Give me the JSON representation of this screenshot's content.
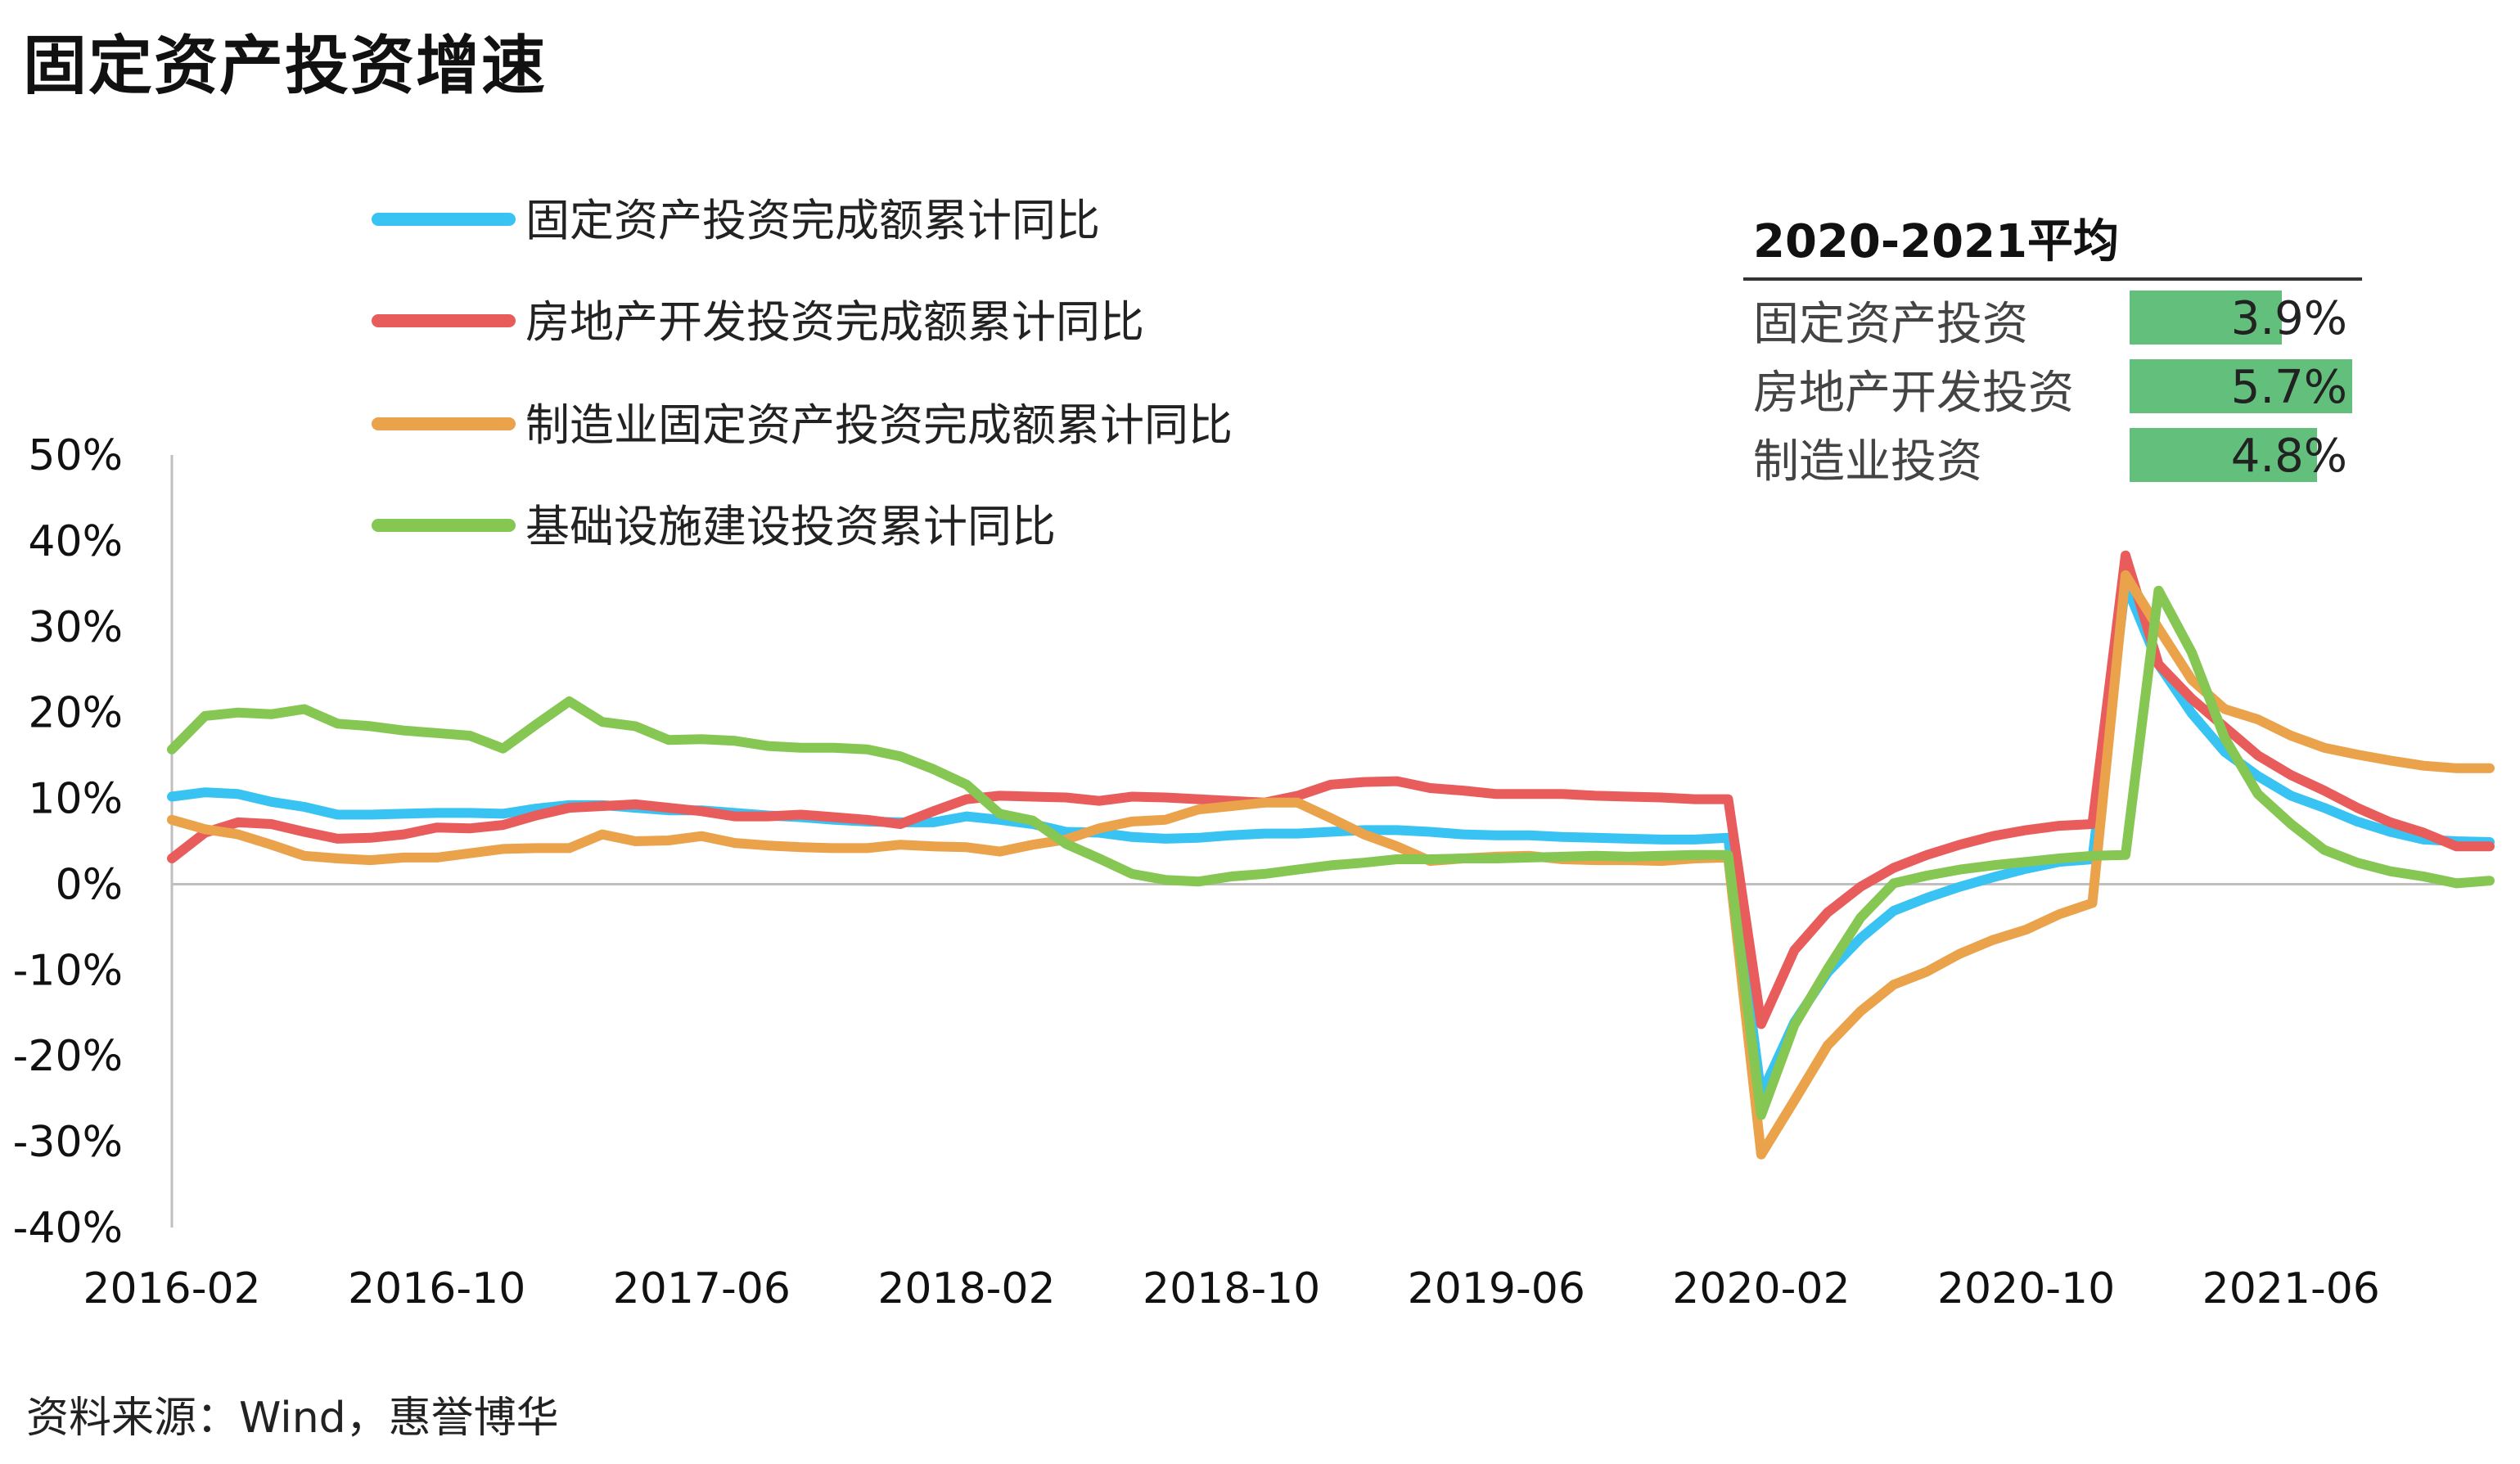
{
  "title": "固定资产投资增速",
  "source": "资料来源：Wind，惠誉博华",
  "average_table": {
    "title": "2020-2021平均",
    "rows": [
      {
        "label": "固定资产投资",
        "value": "3.9%",
        "num": 3.9
      },
      {
        "label": "房地产开发投资",
        "value": "5.7%",
        "num": 5.7
      },
      {
        "label": "制造业投资",
        "value": "4.8%",
        "num": 4.8
      }
    ]
  },
  "chart_data": {
    "type": "line",
    "ylim": [
      -40,
      50
    ],
    "yticks": [
      "50%",
      "40%",
      "30%",
      "20%",
      "10%",
      "0%",
      "-10%",
      "-20%",
      "-30%",
      "-40%"
    ],
    "ytick_values": [
      50,
      40,
      30,
      20,
      10,
      0,
      -10,
      -20,
      -30,
      -40
    ],
    "xtick_labels": [
      "2016-02",
      "2016-10",
      "2017-06",
      "2018-02",
      "2018-10",
      "2019-06",
      "2020-02",
      "2020-10",
      "2021-06"
    ],
    "xtick_indices": [
      0,
      8,
      16,
      24,
      32,
      40,
      48,
      56,
      64
    ],
    "x_count": 71,
    "legend_position": "top-left",
    "series": [
      {
        "name": "固定资产投资完成额累计同比",
        "color": "#38c3f2",
        "values": [
          10.2,
          10.7,
          10.5,
          9.6,
          9.0,
          8.1,
          8.1,
          8.2,
          8.3,
          8.3,
          8.2,
          8.8,
          9.2,
          9.2,
          8.9,
          8.6,
          8.6,
          8.3,
          8.0,
          7.8,
          7.5,
          7.3,
          7.2,
          7.2,
          7.9,
          7.5,
          7.0,
          6.1,
          6.0,
          5.5,
          5.3,
          5.4,
          5.7,
          5.9,
          5.9,
          6.1,
          6.3,
          6.3,
          6.1,
          5.8,
          5.7,
          5.7,
          5.5,
          5.4,
          5.3,
          5.2,
          5.2,
          5.4,
          -24.5,
          -16.1,
          -10.3,
          -6.3,
          -3.1,
          -1.6,
          -0.3,
          0.8,
          1.8,
          2.6,
          2.9,
          35.0,
          25.6,
          19.9,
          15.4,
          12.6,
          10.3,
          8.9,
          7.3,
          6.1,
          5.2,
          5.0,
          4.9
        ]
      },
      {
        "name": "房地产开发投资完成额累计同比",
        "color": "#e85c5c",
        "values": [
          3.0,
          6.0,
          7.2,
          7.0,
          6.1,
          5.3,
          5.4,
          5.8,
          6.6,
          6.5,
          6.9,
          8.0,
          8.9,
          9.1,
          9.3,
          8.9,
          8.5,
          7.9,
          7.9,
          8.1,
          7.8,
          7.5,
          7.0,
          8.5,
          9.9,
          10.3,
          10.2,
          10.1,
          9.7,
          10.2,
          10.1,
          9.9,
          9.7,
          9.5,
          10.3,
          11.6,
          11.9,
          12.0,
          11.2,
          10.9,
          10.5,
          10.5,
          10.5,
          10.3,
          10.2,
          10.1,
          9.9,
          9.9,
          -16.3,
          -7.7,
          -3.3,
          -0.3,
          1.9,
          3.4,
          4.6,
          5.6,
          6.3,
          6.8,
          7.0,
          38.3,
          25.6,
          21.6,
          18.3,
          15.0,
          12.7,
          10.9,
          8.9,
          7.2,
          6.0,
          4.4,
          4.4
        ]
      },
      {
        "name": "制造业固定资产投资完成额累计同比",
        "color": "#eaa24b",
        "values": [
          7.5,
          6.4,
          5.8,
          4.6,
          3.3,
          3.0,
          2.8,
          3.1,
          3.1,
          3.6,
          4.1,
          4.2,
          4.2,
          5.8,
          5.0,
          5.1,
          5.6,
          4.8,
          4.5,
          4.3,
          4.2,
          4.2,
          4.6,
          4.4,
          4.3,
          3.8,
          4.6,
          5.2,
          6.5,
          7.3,
          7.5,
          8.7,
          9.1,
          9.5,
          9.5,
          7.7,
          5.8,
          4.4,
          2.7,
          3.0,
          3.2,
          3.3,
          2.9,
          2.8,
          2.8,
          2.7,
          3.0,
          3.1,
          -31.5,
          -25.2,
          -18.8,
          -14.8,
          -11.7,
          -10.2,
          -8.1,
          -6.5,
          -5.3,
          -3.5,
          -2.2,
          36.0,
          29.8,
          23.8,
          20.4,
          19.2,
          17.3,
          15.9,
          15.1,
          14.4,
          13.8,
          13.5,
          13.5
        ]
      },
      {
        "name": "基础设施建设投资累计同比",
        "color": "#86c653",
        "values": [
          15.7,
          19.6,
          20.0,
          19.8,
          20.4,
          18.7,
          18.4,
          17.9,
          17.6,
          17.3,
          15.8,
          18.6,
          21.3,
          18.9,
          18.4,
          16.8,
          16.9,
          16.7,
          16.1,
          15.9,
          15.9,
          15.7,
          14.9,
          13.4,
          11.6,
          8.2,
          7.4,
          4.7,
          3.0,
          1.2,
          0.5,
          0.3,
          0.9,
          1.2,
          1.7,
          2.2,
          2.5,
          2.9,
          2.9,
          3.0,
          3.0,
          3.1,
          3.2,
          3.3,
          3.2,
          3.3,
          3.4,
          3.4,
          -26.9,
          -16.4,
          -9.9,
          -3.9,
          0.1,
          1.0,
          1.7,
          2.2,
          2.6,
          3.0,
          3.3,
          3.4,
          34.2,
          27.0,
          17.0,
          10.5,
          7.0,
          4.0,
          2.5,
          1.5,
          0.9,
          0.1,
          0.4
        ]
      }
    ]
  }
}
